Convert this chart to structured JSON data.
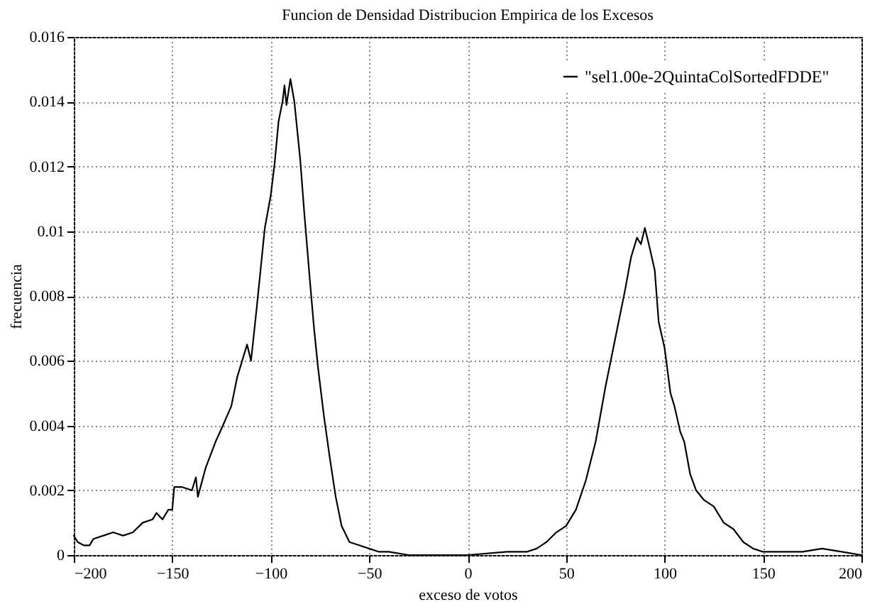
{
  "chart_data": {
    "type": "line",
    "title": "Funcion de Densidad Distribucion Empirica de los Excesos",
    "xlabel": "exceso de votos",
    "ylabel": "frecuencia",
    "xlim": [
      -200,
      200
    ],
    "xticks": [
      -200,
      -150,
      -100,
      -50,
      0,
      50,
      100,
      150,
      200
    ],
    "ylim": [
      0,
      0.016
    ],
    "yticks": [
      0,
      0.002,
      0.004,
      0.006,
      0.008,
      0.01,
      0.012,
      0.014,
      0.016
    ],
    "grid": true,
    "legend": "top right",
    "line_style": "solid",
    "marker": "none",
    "series": [
      {
        "name": "\"sel1.00e-2QuintaColSortedFDDE\"",
        "color": "#000000",
        "x": [
          -200,
          -198,
          -195,
          -192,
          -190,
          -185,
          -180,
          -175,
          -170,
          -165,
          -160,
          -158,
          -155,
          -152,
          -150,
          -149,
          -145,
          -140,
          -138,
          -137,
          -133,
          -128,
          -125,
          -120,
          -117,
          -115,
          -112,
          -110,
          -107,
          -103,
          -100,
          -98,
          -96,
          -94,
          -93,
          -92,
          -90,
          -88,
          -85,
          -83,
          -80,
          -78,
          -76,
          -73,
          -70,
          -67,
          -64,
          -60,
          -55,
          -50,
          -45,
          -40,
          -30,
          0,
          20,
          30,
          35,
          40,
          45,
          50,
          55,
          60,
          65,
          70,
          75,
          80,
          83,
          86,
          88,
          90,
          92,
          95,
          97,
          100,
          103,
          105,
          108,
          110,
          113,
          116,
          120,
          125,
          130,
          135,
          140,
          145,
          150,
          160,
          170,
          180,
          190,
          200
        ],
        "values": [
          0.0006,
          0.0004,
          0.0003,
          0.0003,
          0.0005,
          0.0006,
          0.0007,
          0.0006,
          0.0007,
          0.001,
          0.0011,
          0.0013,
          0.0011,
          0.0014,
          0.0014,
          0.0021,
          0.0021,
          0.002,
          0.0024,
          0.0018,
          0.0027,
          0.0035,
          0.0039,
          0.0046,
          0.0055,
          0.0059,
          0.0065,
          0.006,
          0.0077,
          0.0101,
          0.0111,
          0.0121,
          0.0134,
          0.014,
          0.0145,
          0.0139,
          0.0147,
          0.014,
          0.0122,
          0.0106,
          0.0084,
          0.007,
          0.0058,
          0.0043,
          0.003,
          0.0018,
          0.0009,
          0.0004,
          0.0003,
          0.0002,
          0.0001,
          0.0001,
          0,
          0,
          0.0001,
          0.0001,
          0.0002,
          0.0004,
          0.0007,
          0.0009,
          0.0014,
          0.0023,
          0.0035,
          0.0052,
          0.0067,
          0.0082,
          0.0092,
          0.0098,
          0.0096,
          0.0101,
          0.0096,
          0.0088,
          0.0072,
          0.0064,
          0.005,
          0.0046,
          0.0038,
          0.0035,
          0.0025,
          0.002,
          0.0017,
          0.0015,
          0.001,
          0.0008,
          0.0004,
          0.0002,
          0.0001,
          0.0001,
          0.0001,
          0.0002,
          0.0001,
          0
        ]
      }
    ]
  }
}
